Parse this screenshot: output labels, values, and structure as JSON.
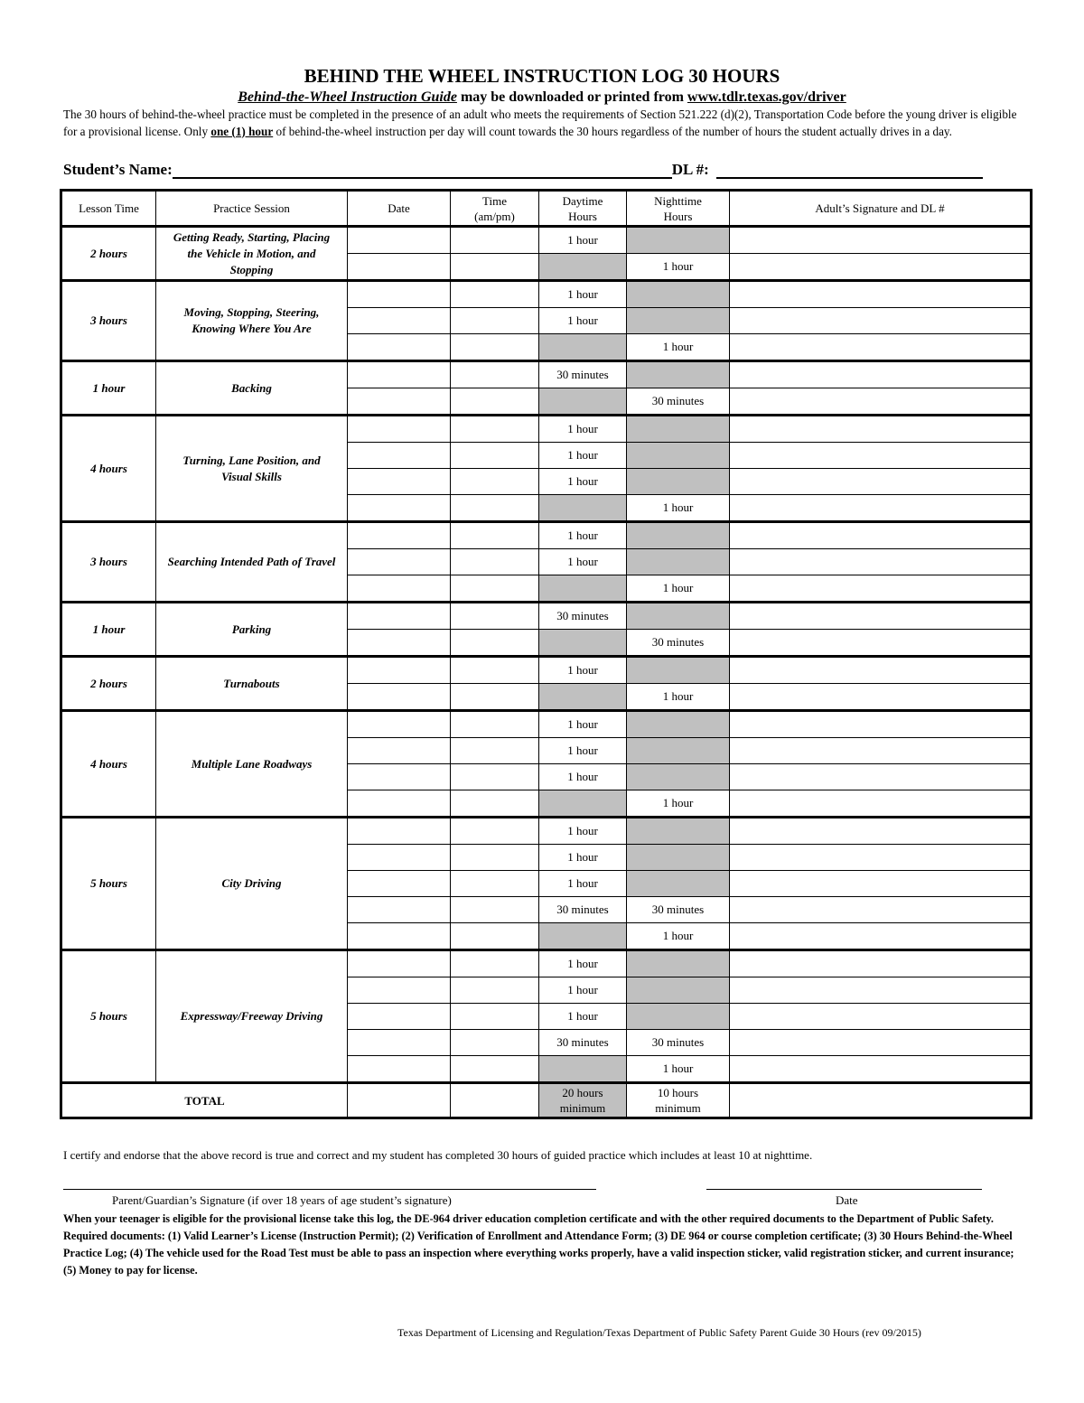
{
  "title": "BEHIND THE WHEEL INSTRUCTION LOG 30 HOURS",
  "subtitle": {
    "guide": "Behind-the-Wheel Instruction Guide",
    "middle": " may be downloaded or printed from ",
    "url": "www.tdlr.texas.gov/driver"
  },
  "intro": {
    "part1": "The 30 hours of behind-the-wheel practice must be completed in the presence of an adult who meets the requirements of Section 521.222 (d)(2), Transportation Code before the young driver is eligible for a provisional license.  Only ",
    "emph": "one (1) hour",
    "part2": " of behind-the-wheel instruction per day will count towards the 30 hours regardless of the number of hours the student actually drives in a day."
  },
  "student_label": "Student’s Name:",
  "dl_label": "DL #:",
  "headers": [
    "Lesson Time",
    "Practice Session",
    "Date",
    "Time (am/pm)",
    "Daytime Hours",
    "Nighttime Hours",
    "Adult’s Signature and DL #"
  ],
  "shade_color": "#c0c0c0",
  "groups": [
    {
      "lesson_time": "2 hours",
      "session": "Getting Ready, Starting, Placing the Vehicle in Motion, and Stopping",
      "rows": [
        [
          "1 hour",
          ""
        ],
        [
          "",
          "1 hour"
        ]
      ]
    },
    {
      "lesson_time": "3 hours",
      "session": "Moving, Stopping, Steering, Knowing Where You Are",
      "rows": [
        [
          "1 hour",
          ""
        ],
        [
          "1 hour",
          ""
        ],
        [
          "",
          "1 hour"
        ]
      ]
    },
    {
      "lesson_time": "1 hour",
      "session": "Backing",
      "rows": [
        [
          "30 minutes",
          ""
        ],
        [
          "",
          "30 minutes"
        ]
      ]
    },
    {
      "lesson_time": "4 hours",
      "session": "Turning, Lane Position, and Visual Skills",
      "rows": [
        [
          "1 hour",
          ""
        ],
        [
          "1 hour",
          ""
        ],
        [
          "1 hour",
          ""
        ],
        [
          "",
          "1 hour"
        ]
      ]
    },
    {
      "lesson_time": "3 hours",
      "session": "Searching Intended Path of Travel",
      "rows": [
        [
          "1 hour",
          ""
        ],
        [
          "1 hour",
          ""
        ],
        [
          "",
          "1 hour"
        ]
      ]
    },
    {
      "lesson_time": "1 hour",
      "session": "Parking",
      "rows": [
        [
          "30 minutes",
          ""
        ],
        [
          "",
          "30 minutes"
        ]
      ]
    },
    {
      "lesson_time": "2 hours",
      "session": "Turnabouts",
      "rows": [
        [
          "1 hour",
          ""
        ],
        [
          "",
          "1 hour"
        ]
      ]
    },
    {
      "lesson_time": "4 hours",
      "session": "Multiple Lane Roadways",
      "rows": [
        [
          "1 hour",
          ""
        ],
        [
          "1 hour",
          ""
        ],
        [
          "1 hour",
          ""
        ],
        [
          "",
          "1 hour"
        ]
      ]
    },
    {
      "lesson_time": "5 hours",
      "session": "City Driving",
      "rows": [
        [
          "1 hour",
          ""
        ],
        [
          "1 hour",
          ""
        ],
        [
          "1 hour",
          ""
        ],
        [
          "30 minutes",
          "30 minutes"
        ],
        [
          "",
          "1 hour"
        ]
      ]
    },
    {
      "lesson_time": "5 hours",
      "session": "Expressway/Freeway Driving",
      "rows": [
        [
          "1 hour",
          ""
        ],
        [
          "1 hour",
          ""
        ],
        [
          "1 hour",
          ""
        ],
        [
          "30 minutes",
          "30 minutes"
        ],
        [
          "",
          "1 hour"
        ]
      ]
    }
  ],
  "total": {
    "label": "TOTAL",
    "day": "20 hours minimum",
    "night": "10 hours minimum"
  },
  "certify": "I certify and endorse that the above record is true and correct and my student has completed 30 hours of guided practice which includes at least 10 at nighttime.",
  "signature_label": "Parent/Guardian’s Signature (if over 18 years of age student’s signature)",
  "date_label": "Date",
  "notes": "When your teenager is eligible for the provisional license take this log, the DE-964 driver education completion certificate and with the other required documents to the Department of Public Safety. Required documents: (1) Valid Learner’s License (Instruction Permit); (2) Verification of Enrollment and Attendance Form; (3) DE 964 or course completion certificate; (3) 30 Hours Behind-the-Wheel Practice Log; (4) The vehicle used for the Road Test must be able to pass an inspection where everything works properly, have a valid inspection sticker, valid registration sticker, and current insurance; (5) Money to pay for license.",
  "footer": "Texas Department of Licensing and Regulation/Texas Department of Public Safety   Parent Guide 30 Hours (rev 09/2015)"
}
